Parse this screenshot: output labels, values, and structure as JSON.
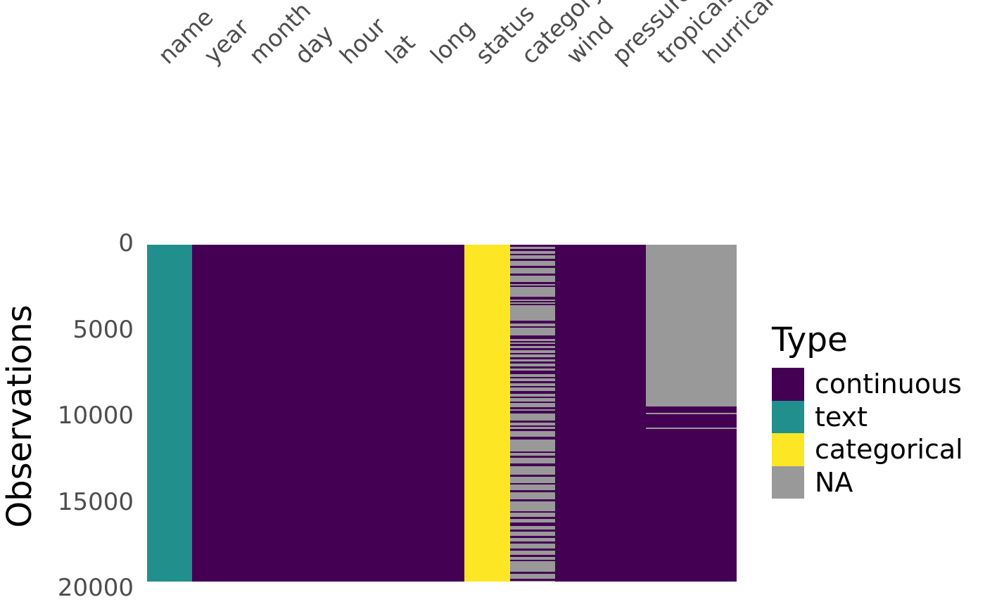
{
  "chart_data": {
    "type": "heatmap",
    "description": "visdat-style data-type heatmap of a storms dataframe: one vertical band per variable, colored by data type, grey where values are missing (NA)",
    "ylabel": "Observations",
    "y_ticks": [
      "0",
      "5000",
      "10000",
      "15000",
      "20000"
    ],
    "y_tick_values": [
      0,
      5000,
      10000,
      15000,
      20000
    ],
    "n_rows_depicted": 19537,
    "legend_title": "Type",
    "legend": [
      {
        "label": "continuous",
        "type": "continuous",
        "color": "#440154"
      },
      {
        "label": "text",
        "type": "text",
        "color": "#21908C"
      },
      {
        "label": "categorical",
        "type": "categorical",
        "color": "#FDE725"
      },
      {
        "label": "NA",
        "type": "na",
        "color": "#999999"
      }
    ],
    "palette": {
      "continuous": "#440154",
      "text": "#21908C",
      "categorical": "#FDE725",
      "na": "#999999",
      "axis_text": "#4d4d4d"
    },
    "columns": [
      {
        "label": "name",
        "type": "text"
      },
      {
        "label": "year",
        "type": "continuous"
      },
      {
        "label": "month",
        "type": "continuous"
      },
      {
        "label": "day",
        "type": "continuous"
      },
      {
        "label": "hour",
        "type": "continuous"
      },
      {
        "label": "lat",
        "type": "continuous"
      },
      {
        "label": "long",
        "type": "continuous"
      },
      {
        "label": "status",
        "type": "categorical"
      },
      {
        "label": "category",
        "type": "continuous",
        "mostly_na": true,
        "present_segments": [
          [
            0.0,
            0.0063
          ],
          [
            0.0132,
            0.0182
          ],
          [
            0.0271,
            0.0319
          ],
          [
            0.0411,
            0.048
          ],
          [
            0.062,
            0.0689
          ],
          [
            0.0862,
            0.0925
          ],
          [
            0.1107,
            0.1175
          ],
          [
            0.1217,
            0.1259
          ],
          [
            0.1551,
            0.1634
          ],
          [
            0.1677,
            0.1718
          ],
          [
            0.1754,
            0.1795
          ],
          [
            0.2254,
            0.2338
          ],
          [
            0.2421,
            0.2463
          ],
          [
            0.2699,
            0.2791
          ],
          [
            0.286,
            0.2908
          ],
          [
            0.2943,
            0.2999
          ],
          [
            0.3069,
            0.3124
          ],
          [
            0.3208,
            0.3264
          ],
          [
            0.3347,
            0.3403
          ],
          [
            0.3466,
            0.3521
          ],
          [
            0.3605,
            0.3674
          ],
          [
            0.3744,
            0.3835
          ],
          [
            0.3918,
            0.3973
          ],
          [
            0.4057,
            0.4113
          ],
          [
            0.4196,
            0.4238
          ],
          [
            0.4335,
            0.4425
          ],
          [
            0.4509,
            0.4551
          ],
          [
            0.4648,
            0.4704
          ],
          [
            0.4823,
            0.4879
          ],
          [
            0.4921,
            0.4962
          ],
          [
            0.4969,
            0.5011
          ],
          [
            0.5226,
            0.5282
          ],
          [
            0.5365,
            0.5407
          ],
          [
            0.5469,
            0.5525
          ],
          [
            0.5692,
            0.5783
          ],
          [
            0.613,
            0.6186
          ],
          [
            0.6269,
            0.6325
          ],
          [
            0.6499,
            0.6569
          ],
          [
            0.6826,
            0.6896
          ],
          [
            0.7071,
            0.7127
          ],
          [
            0.7293,
            0.7349
          ],
          [
            0.7558,
            0.7627
          ],
          [
            0.7906,
            0.7962
          ],
          [
            0.808,
            0.8149
          ],
          [
            0.8246,
            0.8358
          ],
          [
            0.8462,
            0.8518
          ],
          [
            0.8637,
            0.8706
          ],
          [
            0.881,
            0.8879
          ],
          [
            0.9019,
            0.9089
          ],
          [
            0.9214,
            0.9269
          ],
          [
            0.9353,
            0.9395
          ],
          [
            0.9708,
            0.9777
          ],
          [
            0.9911,
            0.9986
          ]
        ]
      },
      {
        "label": "wind",
        "type": "continuous"
      },
      {
        "label": "pressure",
        "type": "continuous"
      },
      {
        "label": "tropicalstorm_force_diameter",
        "type": "continuous",
        "na_segments": [
          [
            0.0,
            0.4802
          ],
          [
            0.499,
            0.5032
          ],
          [
            0.5428,
            0.547
          ]
        ]
      },
      {
        "label": "hurricane_force_diameter",
        "type": "continuous",
        "na_segments": [
          [
            0.0,
            0.4802
          ],
          [
            0.499,
            0.5032
          ],
          [
            0.5428,
            0.547
          ]
        ]
      }
    ]
  }
}
